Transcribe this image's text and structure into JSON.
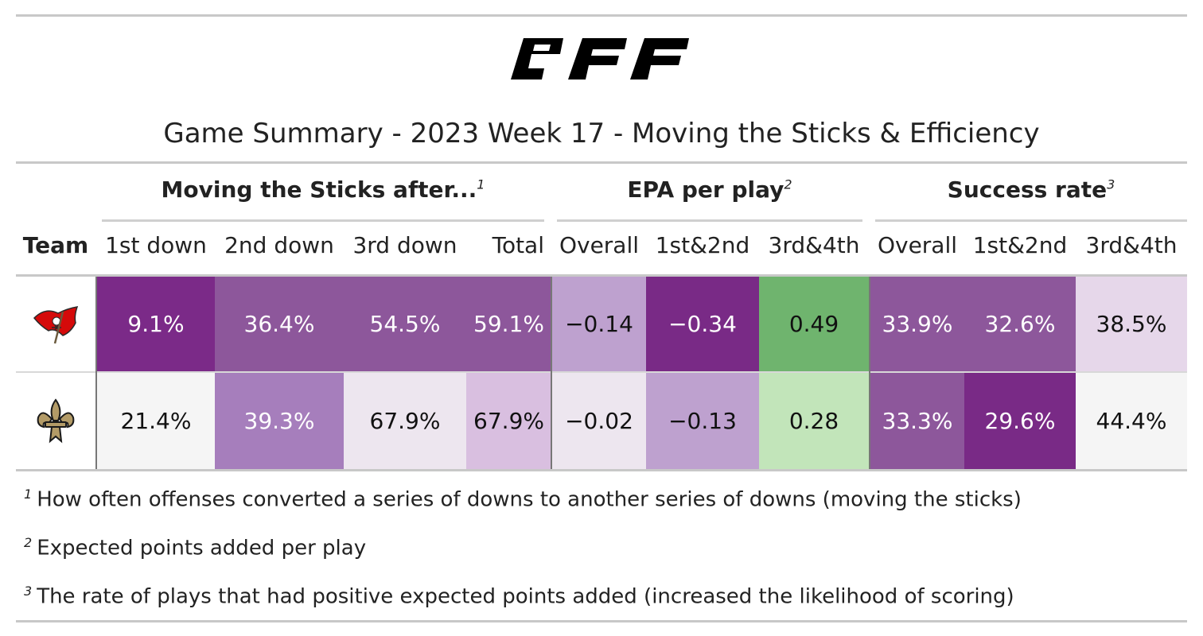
{
  "brand": {
    "logo_text": "PFF"
  },
  "title": "Game Summary - 2023 Week 17 - Moving the Sticks & Efficiency",
  "spanners": [
    {
      "label": "Moving the Sticks after...",
      "note": "1"
    },
    {
      "label": "EPA per play",
      "note": "2"
    },
    {
      "label": "Success rate",
      "note": "3"
    }
  ],
  "columns": [
    "Team",
    "1st down",
    "2nd down",
    "3rd down",
    "Total",
    "Overall",
    "1st&2nd",
    "3rd&4th",
    "Overall",
    "1st&2nd",
    "3rd&4th"
  ],
  "teams": [
    {
      "icon": "buccaneers-flag-icon",
      "values": [
        "9.1%",
        "36.4%",
        "54.5%",
        "59.1%",
        "−0.14",
        "−0.34",
        "0.49",
        "33.9%",
        "32.6%",
        "38.5%"
      ],
      "colors": [
        "#7b2a88",
        "#8d579b",
        "#8d579b",
        "#8d579b",
        "#bea1cf",
        "#792a86",
        "#6fb46e",
        "#8d579b",
        "#8d579b",
        "#e6d7ea"
      ],
      "text_colors": [
        "#ffffff",
        "#ffffff",
        "#ffffff",
        "#ffffff",
        "#111111",
        "#ffffff",
        "#111111",
        "#ffffff",
        "#ffffff",
        "#111111"
      ]
    },
    {
      "icon": "saints-fleur-de-lis-icon",
      "values": [
        "21.4%",
        "39.3%",
        "67.9%",
        "67.9%",
        "−0.02",
        "−0.13",
        "0.28",
        "33.3%",
        "29.6%",
        "44.4%"
      ],
      "colors": [
        "#f5f5f5",
        "#a67ebc",
        "#ede6ef",
        "#d9bfe0",
        "#ede6ef",
        "#bea1cf",
        "#c2e5ba",
        "#8d579b",
        "#792a86",
        "#f5f5f5"
      ],
      "text_colors": [
        "#111111",
        "#ffffff",
        "#111111",
        "#111111",
        "#111111",
        "#111111",
        "#111111",
        "#ffffff",
        "#ffffff",
        "#111111"
      ]
    }
  ],
  "footnotes": [
    {
      "mark": "1",
      "text": "How often offenses converted a series of downs to another series of downs (moving the sticks)"
    },
    {
      "mark": "2",
      "text": "Expected points added per play"
    },
    {
      "mark": "3",
      "text": "The rate of plays that had positive expected points added (increased the likelihood of scoring)"
    }
  ]
}
